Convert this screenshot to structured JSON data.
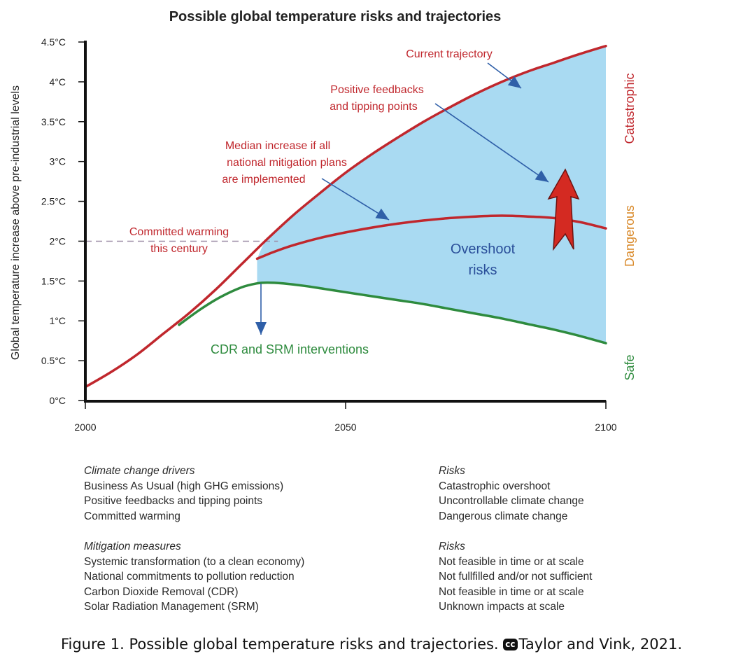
{
  "chart_data": {
    "type": "line",
    "title": "Possible global temperature risks and trajectories",
    "ylabel": "Global temperature increase above pre-industrial levels",
    "xlim": [
      2000,
      2100
    ],
    "ylim": [
      0,
      4.5
    ],
    "x_ticks": [
      {
        "value": 2000,
        "label": "2000"
      },
      {
        "value": 2050,
        "label": "2050"
      },
      {
        "value": 2100,
        "label": "2100"
      }
    ],
    "y_ticks": [
      {
        "value": 0,
        "label": "0°C"
      },
      {
        "value": 0.5,
        "label": "0.5°C"
      },
      {
        "value": 1,
        "label": "1°C"
      },
      {
        "value": 1.5,
        "label": "1.5°C"
      },
      {
        "value": 2,
        "label": "2°C"
      },
      {
        "value": 2.5,
        "label": "2.5°C"
      },
      {
        "value": 3,
        "label": "3°C"
      },
      {
        "value": 3.5,
        "label": "3.5°C"
      },
      {
        "value": 4,
        "label": "4°C"
      },
      {
        "value": 4.5,
        "label": "4.5°C"
      }
    ],
    "series": [
      {
        "key": "current",
        "color": "#c0272d",
        "x": [
          2000,
          2005,
          2010,
          2015,
          2020,
          2025,
          2030,
          2035,
          2040,
          2045,
          2050,
          2055,
          2060,
          2065,
          2070,
          2075,
          2080,
          2085,
          2090,
          2095,
          2100
        ],
        "values": [
          0.17,
          0.36,
          0.58,
          0.84,
          1.1,
          1.39,
          1.71,
          2.03,
          2.33,
          2.6,
          2.86,
          3.09,
          3.3,
          3.5,
          3.68,
          3.85,
          4.0,
          4.13,
          4.24,
          4.35,
          4.45
        ]
      },
      {
        "key": "median",
        "color": "#c0272d",
        "x": [
          2033,
          2036,
          2040,
          2045,
          2050,
          2055,
          2060,
          2065,
          2070,
          2075,
          2080,
          2085,
          2090,
          2095,
          2100
        ],
        "values": [
          1.78,
          1.86,
          1.95,
          2.04,
          2.11,
          2.17,
          2.22,
          2.26,
          2.29,
          2.31,
          2.32,
          2.31,
          2.29,
          2.24,
          2.16
        ]
      },
      {
        "key": "cdr_srm",
        "color": "#2e8b3e",
        "x": [
          2018,
          2022,
          2026,
          2030,
          2033,
          2035,
          2038,
          2042,
          2046,
          2050,
          2055,
          2060,
          2065,
          2070,
          2075,
          2080,
          2085,
          2090,
          2095,
          2100
        ],
        "values": [
          0.95,
          1.14,
          1.3,
          1.42,
          1.47,
          1.48,
          1.47,
          1.44,
          1.4,
          1.36,
          1.31,
          1.26,
          1.21,
          1.15,
          1.09,
          1.03,
          0.96,
          0.89,
          0.81,
          0.72
        ]
      }
    ],
    "committed_warming_level": 2.0,
    "committed_warming_end": 2037,
    "colors": {
      "red": "#c0272d",
      "green": "#2e8b3e",
      "blue_arrow": "#2f5fa8",
      "overshoot_fill": "#a9daf2",
      "dashed": "#9b8ca5",
      "orange": "#d98a2b"
    },
    "annotations": {
      "current_trajectory": "Current trajectory",
      "positive_feedbacks_1": "Positive feedbacks",
      "positive_feedbacks_2": "and tipping points",
      "median_1": "Median increase if all",
      "median_2": "national mitigation plans",
      "median_3": "are implemented",
      "committed_1": "Committed warming",
      "committed_2": "this century",
      "overshoot_1": "Overshoot",
      "overshoot_2": "risks",
      "cdr_srm": "CDR and SRM interventions"
    },
    "side_labels": {
      "catastrophic": "Catastrophic",
      "dangerous": "Dangerous",
      "safe": "Safe"
    }
  },
  "legend": {
    "drivers": {
      "heading": "Climate change drivers",
      "items": [
        "Business As Usual (high GHG emissions)",
        "Positive feedbacks and tipping points",
        "Committed warming"
      ]
    },
    "drivers_risks": {
      "heading": "Risks",
      "items": [
        "Catastrophic overshoot",
        "Uncontrollable climate change",
        "Dangerous climate change"
      ]
    },
    "mitigation": {
      "heading": "Mitigation measures",
      "items": [
        "Systemic transformation (to a clean economy)",
        "National commitments to pollution reduction",
        "Carbon Dioxide Removal (CDR)",
        "Solar Radiation Management (SRM)"
      ]
    },
    "mitigation_risks": {
      "heading": "Risks",
      "items": [
        "Not feasible in time or at scale",
        "Not fullfilled and/or not sufficient",
        "Not feasible in time or at scale",
        "Unknown impacts at scale"
      ]
    }
  },
  "caption": {
    "text": "Figure 1. Possible global temperature risks and trajectories. ",
    "cc_icon": "creative-commons-icon",
    "cc_badge": "cc",
    "credit": "Taylor and Vink, 2021."
  }
}
